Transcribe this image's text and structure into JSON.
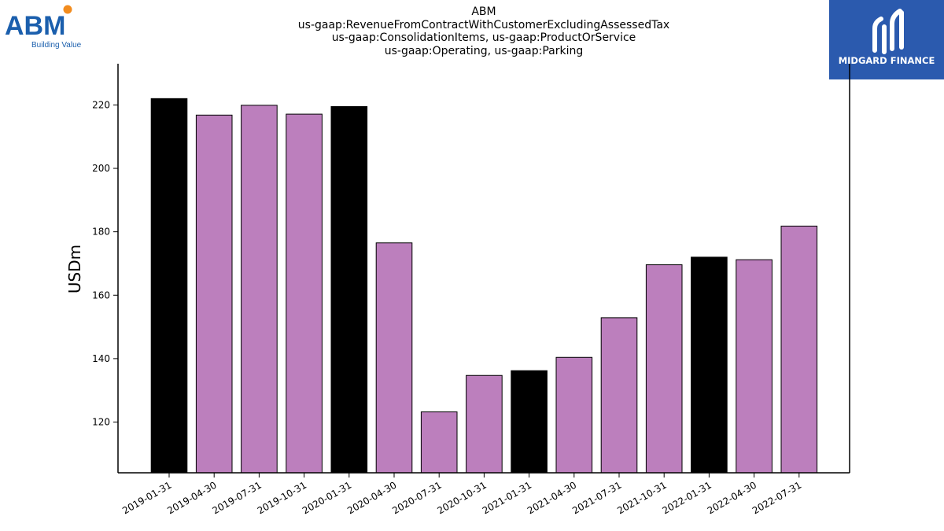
{
  "logos": {
    "left": {
      "wordmark": "ABM",
      "tagline": "Building Value",
      "brand_color": "#1b5fad",
      "dot_color": "#f28c1e"
    },
    "right": {
      "wordmark": "MIDGARD FINANCE",
      "background": "#2b5aae",
      "text_color": "#ffffff"
    }
  },
  "chart_data": {
    "type": "bar",
    "title_lines": [
      "ABM",
      "us-gaap:RevenueFromContractWithCustomerExcludingAssessedTax",
      "us-gaap:ConsolidationItems, us-gaap:ProductOrService",
      "us-gaap:Operating, us-gaap:Parking"
    ],
    "xlabel": "",
    "ylabel": "USDm",
    "ylim": [
      104,
      233
    ],
    "yticks": [
      120,
      140,
      160,
      180,
      200,
      220
    ],
    "categories": [
      "2019-01-31",
      "2019-04-30",
      "2019-07-31",
      "2019-10-31",
      "2020-01-31",
      "2020-04-30",
      "2020-07-31",
      "2020-10-31",
      "2021-01-31",
      "2021-04-30",
      "2021-07-31",
      "2021-10-31",
      "2022-01-31",
      "2022-04-30",
      "2022-07-31"
    ],
    "values": [
      222.0,
      216.8,
      219.9,
      217.1,
      219.5,
      176.5,
      123.2,
      134.7,
      136.2,
      140.4,
      152.9,
      169.6,
      172.0,
      171.2,
      181.8
    ],
    "bar_colors": [
      "#000000",
      "#bc7fbd",
      "#bc7fbd",
      "#bc7fbd",
      "#000000",
      "#bc7fbd",
      "#bc7fbd",
      "#bc7fbd",
      "#000000",
      "#bc7fbd",
      "#bc7fbd",
      "#bc7fbd",
      "#000000",
      "#bc7fbd",
      "#bc7fbd"
    ],
    "grid": false,
    "legend": "none"
  }
}
